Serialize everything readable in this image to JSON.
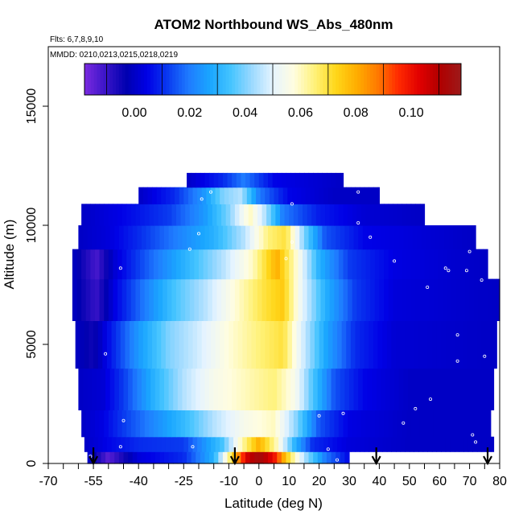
{
  "chart_data": {
    "type": "heatmap",
    "title": "ATOM2 Northbound WS_Abs_480nm",
    "flights_label": "Flts: 6,7,8,9,10",
    "dates_label": "MMDD: 0210,0213,0215,0218,0219",
    "xlabel": "Latitude (deg N)",
    "ylabel": "Altitude (m)",
    "xlim": [
      -70,
      80
    ],
    "ylim": [
      0,
      17500
    ],
    "x_tick_labels": [
      "-70",
      "-55",
      "-40",
      "-25",
      "-10",
      "0",
      "10",
      "20",
      "30",
      "40",
      "50",
      "60",
      "70",
      "80"
    ],
    "x_tick_values": [
      -70,
      -55,
      -40,
      -25,
      -10,
      0,
      10,
      20,
      30,
      40,
      50,
      60,
      70,
      80
    ],
    "x_minor_ticks": [
      -65,
      -60,
      -50,
      -45,
      -35,
      -30,
      -20,
      -15,
      -5,
      5,
      15,
      25,
      35,
      45,
      55,
      65,
      75
    ],
    "y_tick_labels": [
      "0",
      "5000",
      "10000",
      "15000"
    ],
    "y_tick_values": [
      0,
      5000,
      10000,
      15000
    ],
    "colorbar": {
      "min": -0.018,
      "max": 0.118,
      "tick_labels": [
        "0.00",
        "0.02",
        "0.04",
        "0.06",
        "0.08",
        "0.10"
      ],
      "tick_values": [
        0.0,
        0.02,
        0.04,
        0.06,
        0.08,
        0.1
      ],
      "colors": [
        "#7b2be0",
        "#3a14c8",
        "#0000b0",
        "#0000e6",
        "#0a3cf0",
        "#1f7cff",
        "#1aa6ff",
        "#45c4ff",
        "#9bd9ff",
        "#e6f4ff",
        "#fffde0",
        "#fff27a",
        "#ffd71a",
        "#ffae00",
        "#ff7a00",
        "#ff2a00",
        "#e10000",
        "#b00000",
        "#9c1a1a"
      ]
    },
    "heat_rows": [
      {
        "alt": 250,
        "lat_min": -57,
        "lat_max": 30,
        "values": [
          {
            "lat": -57,
            "v": 0.002
          },
          {
            "lat": -50,
            "v": -0.014
          },
          {
            "lat": -40,
            "v": 0.003
          },
          {
            "lat": -25,
            "v": 0.01
          },
          {
            "lat": -15,
            "v": 0.03
          },
          {
            "lat": -9,
            "v": 0.07
          },
          {
            "lat": -4,
            "v": 0.105
          },
          {
            "lat": 0,
            "v": 0.115
          },
          {
            "lat": 5,
            "v": 0.1
          },
          {
            "lat": 10,
            "v": 0.07
          },
          {
            "lat": 15,
            "v": 0.045
          },
          {
            "lat": 22,
            "v": 0.02
          },
          {
            "lat": 30,
            "v": 0.005
          }
        ]
      },
      {
        "alt": 750,
        "lat_min": -58,
        "lat_max": 78,
        "values": [
          {
            "lat": -58,
            "v": 0.0
          },
          {
            "lat": -50,
            "v": 0.005
          },
          {
            "lat": -40,
            "v": 0.01
          },
          {
            "lat": -25,
            "v": 0.012
          },
          {
            "lat": -12,
            "v": 0.035
          },
          {
            "lat": -6,
            "v": 0.06
          },
          {
            "lat": 0,
            "v": 0.08
          },
          {
            "lat": 6,
            "v": 0.06
          },
          {
            "lat": 12,
            "v": 0.03
          },
          {
            "lat": 18,
            "v": 0.01
          },
          {
            "lat": 30,
            "v": 0.003
          },
          {
            "lat": 50,
            "v": 0.0
          },
          {
            "lat": 78,
            "v": 0.0
          }
        ]
      },
      {
        "alt": 1500,
        "lat_min": -59,
        "lat_max": 77,
        "values": [
          {
            "lat": -59,
            "v": 0.0
          },
          {
            "lat": -52,
            "v": 0.004
          },
          {
            "lat": -45,
            "v": 0.012
          },
          {
            "lat": -35,
            "v": 0.022
          },
          {
            "lat": -25,
            "v": 0.032
          },
          {
            "lat": -15,
            "v": 0.045
          },
          {
            "lat": -5,
            "v": 0.055
          },
          {
            "lat": 5,
            "v": 0.06
          },
          {
            "lat": 12,
            "v": 0.042
          },
          {
            "lat": 20,
            "v": 0.015
          },
          {
            "lat": 30,
            "v": 0.004
          },
          {
            "lat": 50,
            "v": 0.0
          },
          {
            "lat": 77,
            "v": 0.0
          }
        ]
      },
      {
        "alt": 3000,
        "lat_min": -60,
        "lat_max": 78,
        "values": [
          {
            "lat": -60,
            "v": 0.0
          },
          {
            "lat": -52,
            "v": 0.002
          },
          {
            "lat": -45,
            "v": 0.012
          },
          {
            "lat": -35,
            "v": 0.03
          },
          {
            "lat": -25,
            "v": 0.045
          },
          {
            "lat": -15,
            "v": 0.055
          },
          {
            "lat": -5,
            "v": 0.06
          },
          {
            "lat": 5,
            "v": 0.065
          },
          {
            "lat": 12,
            "v": 0.055
          },
          {
            "lat": 18,
            "v": 0.035
          },
          {
            "lat": 25,
            "v": 0.015
          },
          {
            "lat": 35,
            "v": 0.005
          },
          {
            "lat": 50,
            "v": 0.0
          },
          {
            "lat": 78,
            "v": 0.0
          }
        ]
      },
      {
        "alt": 5000,
        "lat_min": -61,
        "lat_max": 79,
        "values": [
          {
            "lat": -61,
            "v": 0.0
          },
          {
            "lat": -55,
            "v": -0.005
          },
          {
            "lat": -50,
            "v": 0.006
          },
          {
            "lat": -40,
            "v": 0.025
          },
          {
            "lat": -30,
            "v": 0.04
          },
          {
            "lat": -20,
            "v": 0.048
          },
          {
            "lat": -10,
            "v": 0.058
          },
          {
            "lat": 0,
            "v": 0.065
          },
          {
            "lat": 8,
            "v": 0.07
          },
          {
            "lat": 14,
            "v": 0.05
          },
          {
            "lat": 22,
            "v": 0.028
          },
          {
            "lat": 32,
            "v": 0.01
          },
          {
            "lat": 45,
            "v": 0.002
          },
          {
            "lat": 79,
            "v": 0.0
          }
        ]
      },
      {
        "alt": 7000,
        "lat_min": -62,
        "lat_max": 80,
        "values": [
          {
            "lat": -62,
            "v": 0.0
          },
          {
            "lat": -54,
            "v": -0.01
          },
          {
            "lat": -48,
            "v": 0.004
          },
          {
            "lat": -38,
            "v": 0.02
          },
          {
            "lat": -28,
            "v": 0.035
          },
          {
            "lat": -18,
            "v": 0.045
          },
          {
            "lat": -8,
            "v": 0.058
          },
          {
            "lat": 2,
            "v": 0.07
          },
          {
            "lat": 8,
            "v": 0.075
          },
          {
            "lat": 14,
            "v": 0.052
          },
          {
            "lat": 22,
            "v": 0.03
          },
          {
            "lat": 32,
            "v": 0.012
          },
          {
            "lat": 45,
            "v": 0.003
          },
          {
            "lat": 80,
            "v": 0.0
          }
        ]
      },
      {
        "alt": 8500,
        "lat_min": -62,
        "lat_max": 76,
        "values": [
          {
            "lat": -62,
            "v": 0.0
          },
          {
            "lat": -54,
            "v": -0.012
          },
          {
            "lat": -48,
            "v": 0.002
          },
          {
            "lat": -38,
            "v": 0.015
          },
          {
            "lat": -25,
            "v": 0.03
          },
          {
            "lat": -12,
            "v": 0.045
          },
          {
            "lat": -2,
            "v": 0.06
          },
          {
            "lat": 6,
            "v": 0.08
          },
          {
            "lat": 12,
            "v": 0.06
          },
          {
            "lat": 20,
            "v": 0.03
          },
          {
            "lat": 30,
            "v": 0.012
          },
          {
            "lat": 45,
            "v": 0.004
          },
          {
            "lat": 76,
            "v": 0.0
          }
        ]
      },
      {
        "alt": 9500,
        "lat_min": -60,
        "lat_max": 72,
        "values": [
          {
            "lat": -60,
            "v": 0.0
          },
          {
            "lat": -50,
            "v": 0.003
          },
          {
            "lat": -40,
            "v": 0.01
          },
          {
            "lat": -28,
            "v": 0.02
          },
          {
            "lat": -15,
            "v": 0.03
          },
          {
            "lat": -5,
            "v": 0.045
          },
          {
            "lat": 3,
            "v": 0.065
          },
          {
            "lat": 9,
            "v": 0.07
          },
          {
            "lat": 15,
            "v": 0.04
          },
          {
            "lat": 22,
            "v": 0.015
          },
          {
            "lat": 35,
            "v": 0.005
          },
          {
            "lat": 72,
            "v": 0.0
          }
        ]
      },
      {
        "alt": 10500,
        "lat_min": -59,
        "lat_max": 55,
        "values": [
          {
            "lat": -59,
            "v": 0.0
          },
          {
            "lat": -45,
            "v": 0.005
          },
          {
            "lat": -30,
            "v": 0.012
          },
          {
            "lat": -18,
            "v": 0.025
          },
          {
            "lat": -10,
            "v": 0.04
          },
          {
            "lat": -3,
            "v": 0.06
          },
          {
            "lat": 2,
            "v": 0.045
          },
          {
            "lat": 8,
            "v": 0.02
          },
          {
            "lat": 20,
            "v": 0.008
          },
          {
            "lat": 35,
            "v": 0.002
          },
          {
            "lat": 55,
            "v": 0.0
          }
        ]
      },
      {
        "alt": 11300,
        "lat_min": -40,
        "lat_max": 40,
        "values": [
          {
            "lat": -40,
            "v": 0.0
          },
          {
            "lat": -28,
            "v": 0.01
          },
          {
            "lat": -18,
            "v": 0.025
          },
          {
            "lat": -12,
            "v": 0.04
          },
          {
            "lat": -6,
            "v": 0.045
          },
          {
            "lat": 0,
            "v": 0.02
          },
          {
            "lat": 10,
            "v": 0.005
          },
          {
            "lat": 25,
            "v": 0.0
          },
          {
            "lat": 40,
            "v": 0.0
          }
        ]
      },
      {
        "alt": 11900,
        "lat_min": -24,
        "lat_max": 28,
        "values": [
          {
            "lat": -24,
            "v": 0.0
          },
          {
            "lat": -12,
            "v": 0.01
          },
          {
            "lat": -5,
            "v": 0.02
          },
          {
            "lat": 5,
            "v": 0.005
          },
          {
            "lat": 28,
            "v": 0.0
          }
        ]
      }
    ],
    "sample_points": [
      {
        "lat": -56,
        "alt": 300
      },
      {
        "lat": -46,
        "alt": 700
      },
      {
        "lat": -45,
        "alt": 1800
      },
      {
        "lat": -51,
        "alt": 4600
      },
      {
        "lat": -46,
        "alt": 8200
      },
      {
        "lat": -20,
        "alt": 9650
      },
      {
        "lat": -19,
        "alt": 11100
      },
      {
        "lat": -16,
        "alt": 11400
      },
      {
        "lat": -22,
        "alt": 700
      },
      {
        "lat": 9,
        "alt": 8600
      },
      {
        "lat": 11,
        "alt": 9300
      },
      {
        "lat": 11,
        "alt": 10900
      },
      {
        "lat": 20,
        "alt": 2000
      },
      {
        "lat": 23,
        "alt": 600
      },
      {
        "lat": 26,
        "alt": 150
      },
      {
        "lat": 28,
        "alt": 2100
      },
      {
        "lat": 33,
        "alt": 10100
      },
      {
        "lat": 33,
        "alt": 11400
      },
      {
        "lat": 38,
        "alt": 11800
      },
      {
        "lat": 37,
        "alt": 9500
      },
      {
        "lat": 45,
        "alt": 8500
      },
      {
        "lat": 48,
        "alt": 1700
      },
      {
        "lat": 52,
        "alt": 2300
      },
      {
        "lat": 56,
        "alt": 7400
      },
      {
        "lat": 57,
        "alt": 2700
      },
      {
        "lat": 62,
        "alt": 8200
      },
      {
        "lat": 63,
        "alt": 8100
      },
      {
        "lat": 66,
        "alt": 4300
      },
      {
        "lat": 66,
        "alt": 5400
      },
      {
        "lat": 69,
        "alt": 8100
      },
      {
        "lat": 70,
        "alt": 8900
      },
      {
        "lat": 71,
        "alt": 1200
      },
      {
        "lat": 72,
        "alt": 900
      },
      {
        "lat": 75,
        "alt": 4500
      },
      {
        "lat": 74,
        "alt": 7700
      },
      {
        "lat": -23,
        "alt": 9000
      },
      {
        "lat": 32,
        "alt": 250
      }
    ],
    "arrows_lat": [
      -55,
      -8,
      39,
      76
    ]
  }
}
